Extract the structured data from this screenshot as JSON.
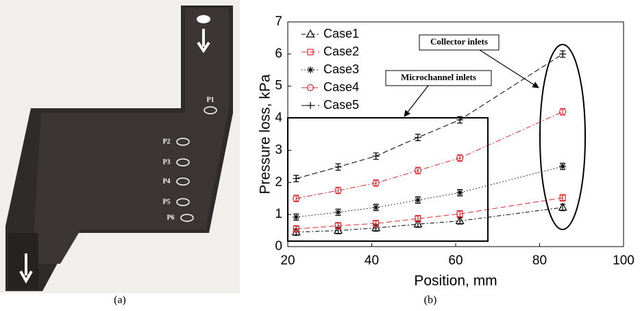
{
  "photo": {
    "labels": [
      "P1",
      "P2",
      "P3",
      "P4",
      "P5",
      "P6"
    ],
    "caption": "(a)"
  },
  "chart_data": {
    "type": "line",
    "caption": "(b)",
    "x_label": "Position, mm",
    "y_label": "Pressure loss, kPa",
    "annotations": [
      "Collector inlets",
      "Microchannel inlets"
    ],
    "x": [
      22,
      32,
      41,
      51,
      61,
      85.5
    ],
    "xlim": [
      20,
      100
    ],
    "xticks": [
      20,
      40,
      60,
      80,
      100
    ],
    "ylim": [
      0,
      7
    ],
    "yticks": [
      0,
      1,
      2,
      3,
      4,
      5,
      6,
      7
    ],
    "legend": "upper-left",
    "series": [
      {
        "name": "Case1",
        "color": "#000000",
        "marker": "triangle",
        "dash": "6 3 2 3",
        "values": [
          0.45,
          0.5,
          0.58,
          0.7,
          0.8,
          1.22
        ],
        "errors": [
          0.1,
          0.1,
          0.1,
          0.1,
          0.1,
          0.1
        ]
      },
      {
        "name": "Case2",
        "color": "#e0252b",
        "marker": "square",
        "dash": "8 4",
        "values": [
          0.55,
          0.65,
          0.72,
          0.87,
          1.02,
          1.52
        ],
        "errors": [
          0.1,
          0.1,
          0.1,
          0.1,
          0.1,
          0.1
        ]
      },
      {
        "name": "Case3",
        "color": "#000000",
        "marker": "star",
        "dash": "1.5 3",
        "values": [
          0.92,
          1.07,
          1.22,
          1.45,
          1.68,
          2.5
        ],
        "errors": [
          0.1,
          0.1,
          0.1,
          0.1,
          0.1,
          0.1
        ]
      },
      {
        "name": "Case4",
        "color": "#e0252b",
        "marker": "circle",
        "dash": "8 3 2 3",
        "values": [
          1.5,
          1.75,
          1.98,
          2.37,
          2.76,
          4.2
        ],
        "errors": [
          0.1,
          0.1,
          0.1,
          0.1,
          0.1,
          0.1
        ]
      },
      {
        "name": "Case5",
        "color": "#000000",
        "marker": "plus",
        "dash": "8 4",
        "values": [
          2.12,
          2.48,
          2.82,
          3.4,
          3.95,
          6.0
        ],
        "errors": [
          0.1,
          0.1,
          0.1,
          0.1,
          0.1,
          0.1
        ]
      }
    ]
  }
}
